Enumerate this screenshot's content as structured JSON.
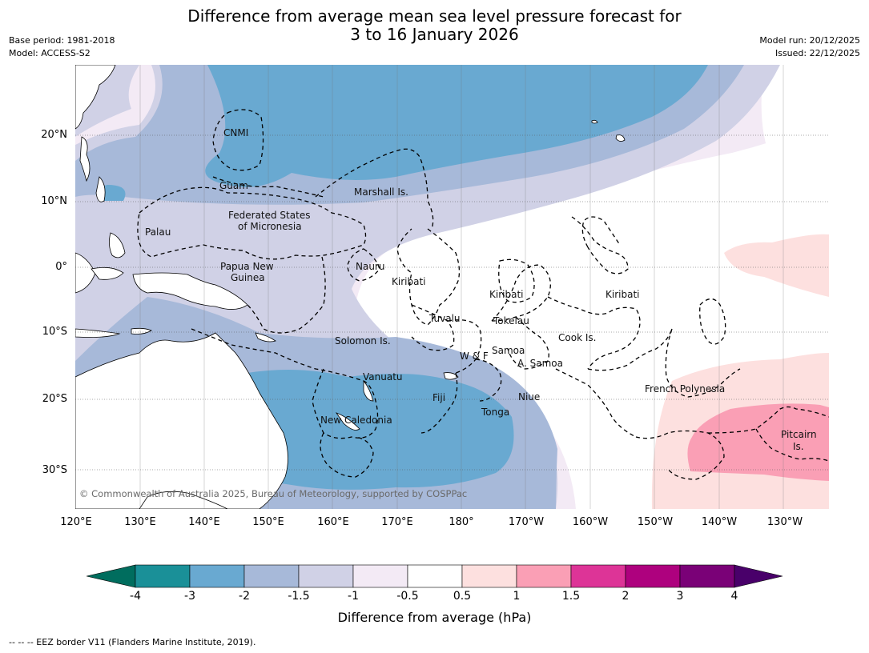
{
  "title": {
    "line1": "Difference from average mean sea level pressure forecast for",
    "line2": "3 to 16 January 2026"
  },
  "meta": {
    "base_period": "Base period: 1981-2018",
    "model": "Model: ACCESS-S2",
    "model_run": "Model run: 20/12/2025",
    "issued": "Issued: 22/12/2025"
  },
  "map": {
    "lon_labels": [
      "120°E",
      "130°E",
      "140°E",
      "150°E",
      "160°E",
      "170°E",
      "180°",
      "170°W",
      "160°W",
      "150°W",
      "140°W",
      "130°W"
    ],
    "lat_labels": [
      "20°N",
      "10°N",
      "0°",
      "10°S",
      "20°S",
      "30°S"
    ],
    "places": [
      "CNMI",
      "Guam",
      "Marshall Is.",
      "Federated States",
      "of Micronesia",
      "Palau",
      "Papua New",
      "Guinea",
      "Nauru",
      "Kiribati",
      "Kiribati",
      "Kiribati",
      "Tuvalu",
      "Tokelau",
      "Cook Is.",
      "Solomon Is.",
      "W & F",
      "Samoa",
      "A. Samoa",
      "Vanuatu",
      "Fiji",
      "Niue",
      "Tonga",
      "New Caledonia",
      "French Polynesia",
      "Pitcairn",
      "Is."
    ],
    "copyright": "© Commonwealth of Australia 2025, Bureau of Meteorology, supported by COSPPac",
    "colors": {
      "lt_neg4": "#006d5e",
      "neg4_neg3": "#1a9098",
      "neg3_neg2": "#69a9d1",
      "neg2_neg15": "#a7b9d9",
      "neg15_neg1": "#d0d1e6",
      "neg1_neg05": "#f3eaf5",
      "neg05_05": "#ffffff",
      "pos05_1": "#fde0df",
      "pos1_15": "#fa9fb5",
      "pos15_2": "#dd3497",
      "pos2_3": "#ae017e",
      "pos3_4": "#7a0177",
      "gt_4": "#49006a"
    }
  },
  "colorbar": {
    "ticks": [
      "-4",
      "-3",
      "-2",
      "-1.5",
      "-1",
      "-0.5",
      "0.5",
      "1",
      "1.5",
      "2",
      "3",
      "4"
    ],
    "label": "Difference from average (hPa)",
    "colors": [
      "#1a9098",
      "#69a9d1",
      "#a7b9d9",
      "#d0d1e6",
      "#f3eaf5",
      "#ffffff",
      "#fde0df",
      "#fa9fb5",
      "#dd3497",
      "#ae017e",
      "#7a0177"
    ],
    "under_color": "#006d5e",
    "over_color": "#49006a"
  },
  "footnote": "--  --  -- EEZ border V11 (Flanders Marine Institute, 2019)."
}
